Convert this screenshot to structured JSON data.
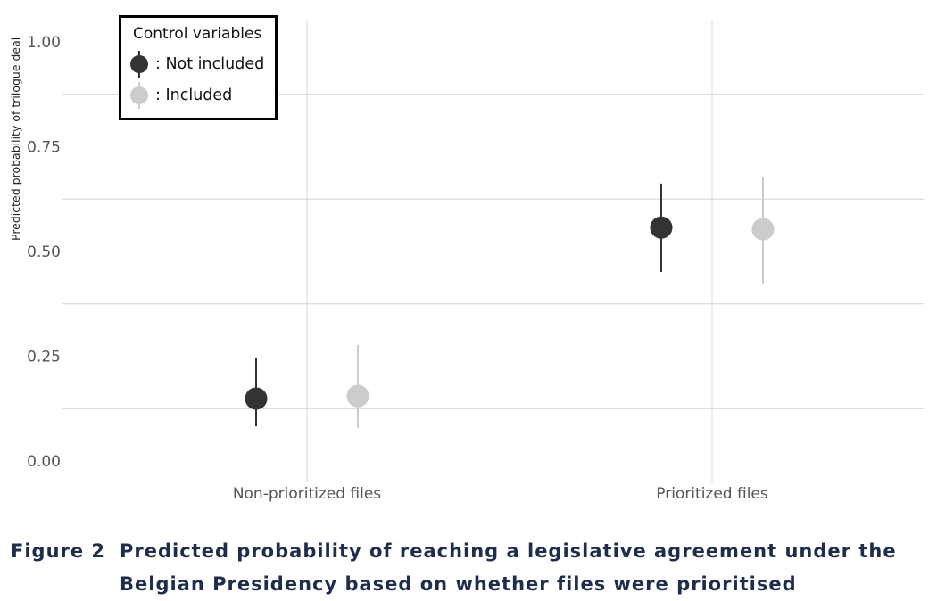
{
  "chart_data": {
    "type": "scatter",
    "subtype": "point-range",
    "categories": [
      "Non-prioritized files",
      "Prioritized files"
    ],
    "ylabel": "Predicted probability of trilogue deal",
    "xlabel": "",
    "ylim": [
      0,
      1
    ],
    "yticks": [
      "0.00",
      "0.25",
      "0.50",
      "0.75",
      "1.00"
    ],
    "ytick_values": [
      0,
      0.25,
      0.5,
      0.75,
      1.0
    ],
    "minor_grid": [
      0.125,
      0.375,
      0.625,
      0.875
    ],
    "grid": true,
    "legend": {
      "title": "Control variables",
      "placement": "top-left",
      "entries": [
        ": Not included",
        ": Included"
      ]
    },
    "series": [
      {
        "name": "Not included",
        "color": "#333333",
        "values": [
          0.149,
          0.557
        ],
        "lower": [
          0.083,
          0.451
        ],
        "upper": [
          0.247,
          0.662
        ]
      },
      {
        "name": "Included",
        "color": "#cccccc",
        "values": [
          0.155,
          0.553
        ],
        "lower": [
          0.079,
          0.423
        ],
        "upper": [
          0.277,
          0.677
        ]
      }
    ]
  },
  "caption": {
    "label": "Figure 2",
    "line1": "Predicted probability of reaching a legislative agreement under the",
    "line2": "Belgian Presidency based on whether files were prioritised"
  }
}
